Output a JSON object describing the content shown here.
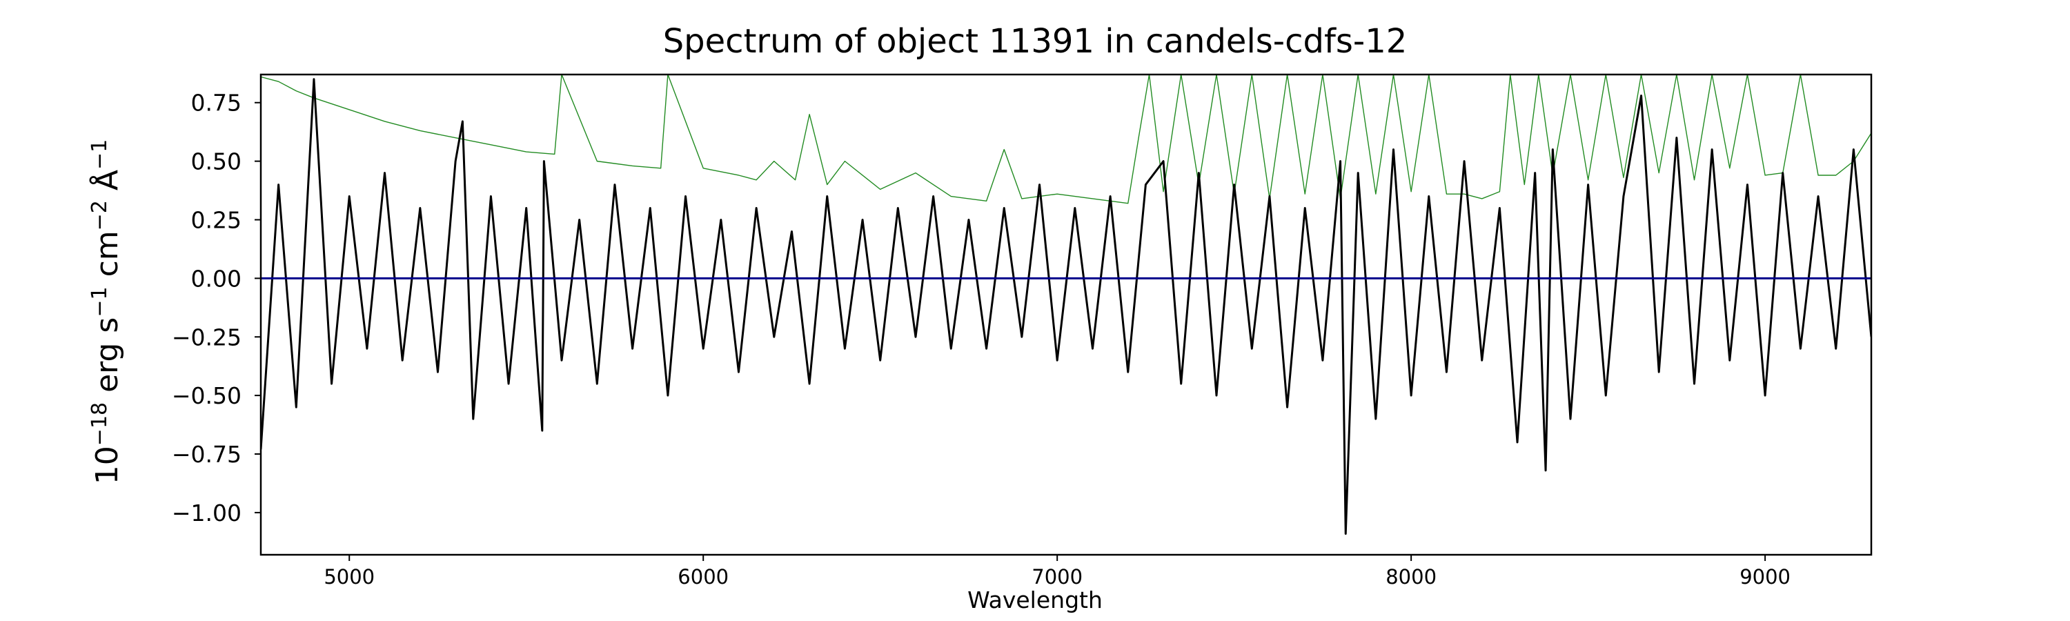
{
  "chart_data": {
    "type": "line",
    "title": "Spectrum of object 11391 in candels-cdfs-12",
    "xlabel": "Wavelength",
    "ylabel": {
      "base": "10",
      "exp": "−18",
      "unit_erg": " erg s",
      "exp_s": "−1",
      "unit_cm": " cm",
      "exp_cm": "−2",
      "unit_ang": " Å",
      "exp_ang": "−1"
    },
    "xlim": [
      4750,
      9300
    ],
    "ylim": [
      -1.18,
      0.87
    ],
    "xticks": [
      5000,
      6000,
      7000,
      8000,
      9000
    ],
    "yticks": [
      0.75,
      0.5,
      0.25,
      0.0,
      -0.25,
      -0.5,
      -0.75,
      -1.0
    ],
    "ytick_labels": [
      "0.75",
      "0.50",
      "0.25",
      "0.00",
      "−0.25",
      "−0.50",
      "−0.75",
      "−1.00"
    ],
    "grid": false,
    "series": [
      {
        "role": "flux",
        "color": "#000000",
        "x": [
          4750,
          4800,
          4850,
          4900,
          4950,
          5000,
          5050,
          5100,
          5150,
          5200,
          5250,
          5300,
          5320,
          5350,
          5400,
          5450,
          5500,
          5545,
          5550,
          5600,
          5650,
          5700,
          5750,
          5800,
          5850,
          5900,
          5950,
          6000,
          6050,
          6100,
          6150,
          6200,
          6250,
          6300,
          6350,
          6400,
          6450,
          6500,
          6550,
          6600,
          6650,
          6700,
          6750,
          6800,
          6850,
          6900,
          6950,
          7000,
          7050,
          7100,
          7150,
          7200,
          7250,
          7300,
          7350,
          7400,
          7450,
          7500,
          7550,
          7600,
          7650,
          7700,
          7750,
          7800,
          7815,
          7850,
          7900,
          7950,
          8000,
          8050,
          8100,
          8150,
          8200,
          8250,
          8300,
          8350,
          8380,
          8400,
          8450,
          8500,
          8550,
          8600,
          8650,
          8700,
          8750,
          8800,
          8850,
          8900,
          8950,
          9000,
          9050,
          9100,
          9150,
          9200,
          9250,
          9300
        ],
        "y": [
          -0.73,
          0.4,
          -0.55,
          0.85,
          -0.45,
          0.35,
          -0.3,
          0.45,
          -0.35,
          0.3,
          -0.4,
          0.5,
          0.67,
          -0.6,
          0.35,
          -0.45,
          0.3,
          -0.65,
          0.5,
          -0.35,
          0.25,
          -0.45,
          0.4,
          -0.3,
          0.3,
          -0.5,
          0.35,
          -0.3,
          0.25,
          -0.4,
          0.3,
          -0.25,
          0.2,
          -0.45,
          0.35,
          -0.3,
          0.25,
          -0.35,
          0.3,
          -0.25,
          0.35,
          -0.3,
          0.25,
          -0.3,
          0.3,
          -0.25,
          0.4,
          -0.35,
          0.3,
          -0.3,
          0.35,
          -0.4,
          0.4,
          0.5,
          -0.45,
          0.45,
          -0.5,
          0.4,
          -0.3,
          0.35,
          -0.55,
          0.3,
          -0.35,
          0.5,
          -1.09,
          0.45,
          -0.6,
          0.55,
          -0.5,
          0.35,
          -0.4,
          0.5,
          -0.35,
          0.3,
          -0.7,
          0.45,
          -0.82,
          0.55,
          -0.6,
          0.4,
          -0.5,
          0.35,
          0.78,
          -0.4,
          0.6,
          -0.45,
          0.55,
          -0.35,
          0.4,
          -0.5,
          0.45,
          -0.3,
          0.35,
          -0.3,
          0.55,
          -0.25
        ]
      },
      {
        "role": "error",
        "color": "#228b22",
        "x": [
          4750,
          4800,
          4850,
          4900,
          5000,
          5100,
          5200,
          5300,
          5400,
          5500,
          5580,
          5600,
          5700,
          5800,
          5880,
          5900,
          6000,
          6100,
          6150,
          6200,
          6260,
          6300,
          6350,
          6400,
          6500,
          6600,
          6700,
          6800,
          6850,
          6900,
          7000,
          7100,
          7200,
          7230,
          7260,
          7300,
          7350,
          7400,
          7450,
          7500,
          7550,
          7600,
          7650,
          7700,
          7750,
          7800,
          7850,
          7900,
          7950,
          8000,
          8050,
          8100,
          8150,
          8200,
          8250,
          8280,
          8320,
          8360,
          8400,
          8450,
          8500,
          8550,
          8600,
          8650,
          8700,
          8750,
          8800,
          8850,
          8900,
          8950,
          9000,
          9050,
          9100,
          9150,
          9200,
          9250,
          9300
        ],
        "y": [
          0.86,
          0.84,
          0.8,
          0.77,
          0.72,
          0.67,
          0.63,
          0.6,
          0.57,
          0.54,
          0.53,
          0.87,
          0.5,
          0.48,
          0.47,
          0.87,
          0.47,
          0.44,
          0.42,
          0.5,
          0.42,
          0.7,
          0.4,
          0.5,
          0.38,
          0.45,
          0.35,
          0.33,
          0.55,
          0.34,
          0.36,
          0.34,
          0.32,
          0.6,
          0.87,
          0.37,
          0.87,
          0.4,
          0.87,
          0.36,
          0.87,
          0.34,
          0.87,
          0.36,
          0.87,
          0.34,
          0.87,
          0.36,
          0.87,
          0.37,
          0.87,
          0.36,
          0.36,
          0.34,
          0.37,
          0.87,
          0.4,
          0.87,
          0.44,
          0.87,
          0.42,
          0.87,
          0.43,
          0.87,
          0.45,
          0.87,
          0.42,
          0.87,
          0.47,
          0.87,
          0.44,
          0.45,
          0.87,
          0.44,
          0.44,
          0.5,
          0.62
        ]
      },
      {
        "role": "zero",
        "color": "#00008b",
        "x": [
          4750,
          9300
        ],
        "y": [
          0,
          0
        ]
      }
    ]
  }
}
